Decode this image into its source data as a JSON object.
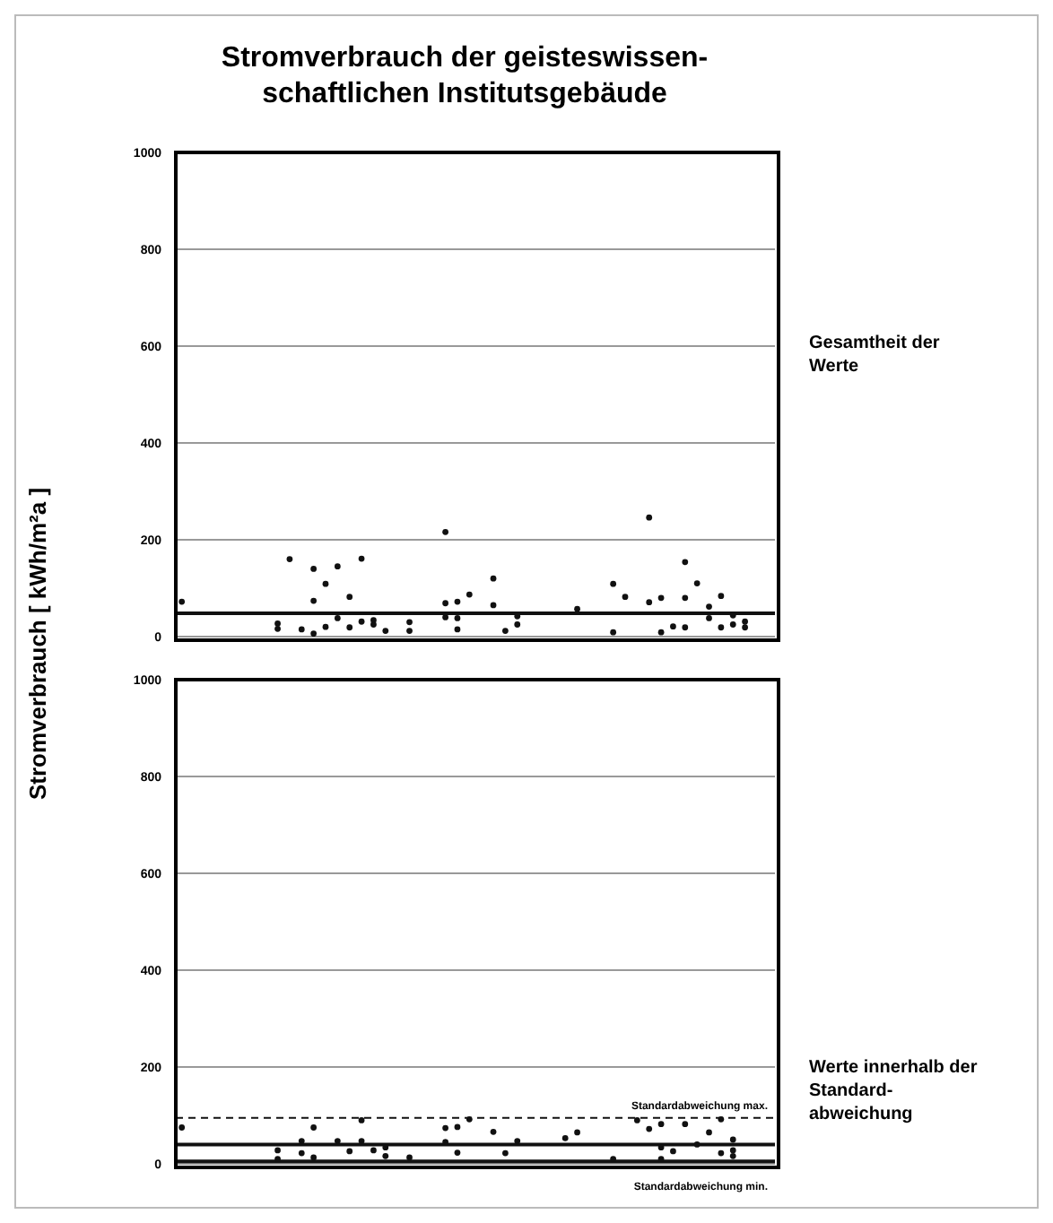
{
  "chart_data": [
    {
      "type": "scatter",
      "title": "Stromverbrauch der geisteswissen-\nschaftlichen Institutsgebäude",
      "ylabel": "Stromverbrauch  [ kWh/m²a ]",
      "annotations": [
        "Gesamtheit der\nWerte"
      ],
      "categories": [
        null,
        null,
        null,
        null,
        null,
        null,
        null,
        null,
        null,
        null,
        null,
        null,
        null,
        null,
        null,
        null,
        null,
        null,
        null,
        null,
        null,
        null,
        null,
        null,
        null,
        null,
        null,
        null,
        null,
        null,
        null,
        null,
        null,
        null,
        null,
        null,
        null,
        null,
        null,
        null,
        null,
        null,
        null,
        null,
        null,
        null,
        null,
        null,
        null,
        null
      ],
      "series": [
        {
          "color": "#111111",
          "values": [
            72,
            null,
            null,
            null,
            null,
            null,
            null,
            null,
            16,
            160,
            15,
            74,
            109,
            145,
            19,
            161,
            25,
            12,
            null,
            12,
            null,
            null,
            216,
            72,
            87,
            null,
            65,
            12,
            25,
            null,
            null,
            null,
            null,
            57,
            null,
            null,
            9,
            82,
            null,
            246,
            80,
            21,
            154,
            110,
            62,
            84,
            25,
            31,
            null,
            null
          ]
        },
        {
          "color": "#111111",
          "values": [
            null,
            null,
            null,
            null,
            null,
            null,
            null,
            null,
            27,
            null,
            null,
            6,
            20,
            38,
            82,
            31,
            34,
            null,
            null,
            30,
            null,
            null,
            69,
            15,
            null,
            null,
            120,
            null,
            42,
            null,
            null,
            null,
            null,
            null,
            null,
            null,
            109,
            null,
            null,
            71,
            9,
            null,
            80,
            null,
            38,
            19,
            44,
            19,
            null,
            null
          ]
        },
        {
          "color": "#111111",
          "values": [
            null,
            null,
            null,
            null,
            null,
            null,
            null,
            null,
            null,
            null,
            null,
            140,
            null,
            null,
            null,
            null,
            null,
            null,
            null,
            null,
            null,
            null,
            40,
            38,
            null,
            null,
            null,
            null,
            null,
            null,
            null,
            null,
            null,
            null,
            null,
            null,
            null,
            null,
            null,
            null,
            null,
            null,
            19,
            null,
            null,
            null,
            null,
            null,
            null,
            null
          ]
        }
      ],
      "ylim": [
        0,
        1000
      ],
      "yticks": [
        0,
        200,
        400,
        600,
        800,
        1000
      ],
      "grid": "y",
      "tick_labels": "y",
      "marker": "circle",
      "ref_lines": [
        {
          "axis": "y",
          "value": 48,
          "color": "#111111",
          "line_style": "solid"
        }
      ]
    },
    {
      "type": "scatter",
      "annotations": [
        "Werte innerhalb der\nStandard-\nabweichung"
      ],
      "categories": [
        null,
        null,
        null,
        null,
        null,
        null,
        null,
        null,
        null,
        null,
        null,
        null,
        null,
        null,
        null,
        null,
        null,
        null,
        null,
        null,
        null,
        null,
        null,
        null,
        null,
        null,
        null,
        null,
        null,
        null,
        null,
        null,
        null,
        null,
        null,
        null,
        null,
        null,
        null,
        null,
        null,
        null,
        null,
        null,
        null,
        null,
        null,
        null,
        null,
        null
      ],
      "series": [
        {
          "color": "#111111",
          "values": [
            75,
            null,
            null,
            null,
            null,
            null,
            null,
            null,
            10,
            null,
            22,
            75,
            null,
            47,
            26,
            90,
            28,
            16,
            null,
            13,
            null,
            null,
            74,
            76,
            92,
            null,
            66,
            22,
            47,
            null,
            null,
            null,
            53,
            65,
            null,
            null,
            10,
            null,
            90,
            72,
            82,
            26,
            82,
            40,
            65,
            92,
            16,
            null,
            null,
            null
          ]
        },
        {
          "color": "#111111",
          "values": [
            null,
            null,
            null,
            null,
            null,
            null,
            null,
            null,
            28,
            null,
            47,
            13,
            null,
            null,
            null,
            47,
            null,
            34,
            null,
            null,
            null,
            null,
            45,
            23,
            null,
            null,
            null,
            null,
            null,
            null,
            null,
            null,
            null,
            null,
            null,
            null,
            null,
            null,
            null,
            null,
            10,
            null,
            null,
            null,
            null,
            22,
            28,
            null,
            null,
            null
          ]
        },
        {
          "color": "#111111",
          "values": [
            null,
            null,
            null,
            null,
            null,
            null,
            null,
            null,
            null,
            null,
            null,
            null,
            null,
            null,
            null,
            null,
            null,
            null,
            null,
            null,
            null,
            null,
            null,
            null,
            null,
            null,
            null,
            null,
            null,
            null,
            null,
            null,
            null,
            null,
            null,
            null,
            null,
            null,
            null,
            null,
            34,
            null,
            null,
            null,
            null,
            null,
            50,
            null,
            null,
            null
          ]
        }
      ],
      "ylim": [
        0,
        1000
      ],
      "yticks": [
        0,
        200,
        400,
        600,
        800,
        1000
      ],
      "grid": "y",
      "tick_labels": "y",
      "marker": "circle",
      "ref_lines": [
        {
          "axis": "y",
          "value": 95,
          "label": "Standardabweichung max.",
          "color": "#111111",
          "line_style": "dashed"
        },
        {
          "axis": "y",
          "value": 40,
          "color": "#111111",
          "line_style": "solid"
        },
        {
          "axis": "y",
          "value": 5,
          "label": "Standardabweichung min.",
          "color": "#111111",
          "line_style": "solid"
        }
      ]
    }
  ]
}
